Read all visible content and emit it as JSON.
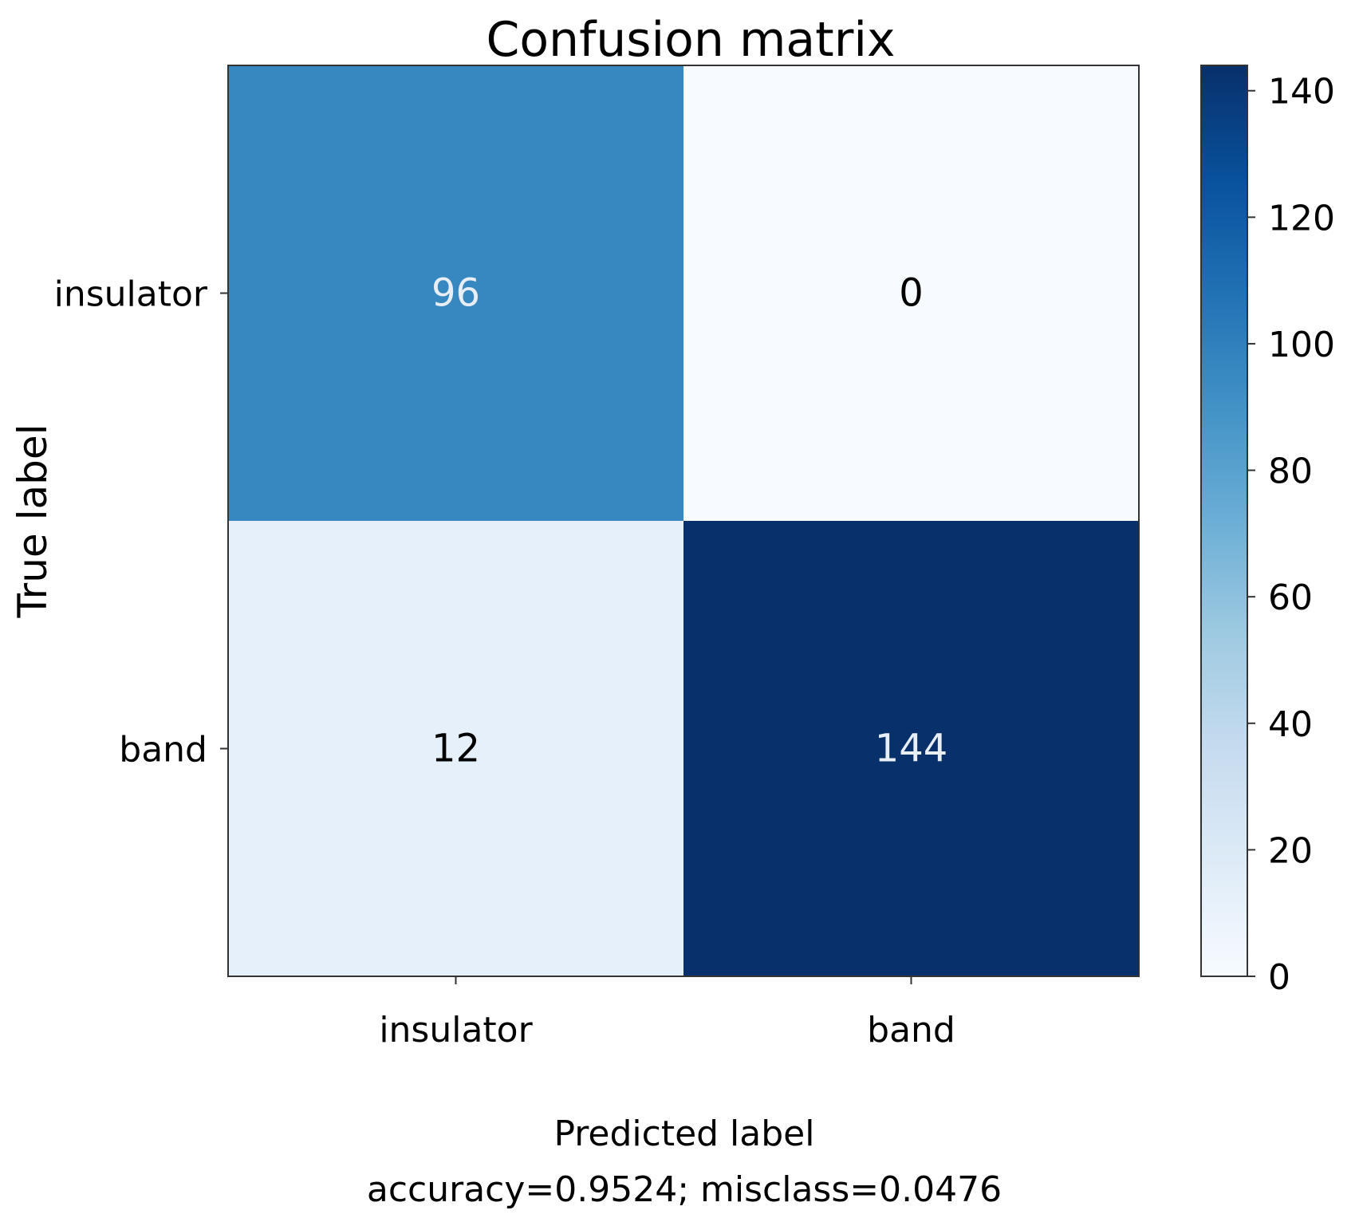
{
  "chart_data": {
    "type": "heatmap",
    "title": "Confusion matrix",
    "xlabel": "Predicted label",
    "ylabel": "True label",
    "footer": "accuracy=0.9524; misclass=0.0476",
    "x_categories": [
      "insulator",
      "band"
    ],
    "y_categories": [
      "insulator",
      "band"
    ],
    "matrix": [
      [
        96,
        0
      ],
      [
        12,
        144
      ]
    ],
    "colormap": "Blues",
    "value_range": [
      0,
      144
    ],
    "colorbar_ticks": [
      0,
      20,
      40,
      60,
      80,
      100,
      120,
      140
    ],
    "colors": {
      "min": "#f7fbff",
      "max": "#08306b",
      "text_dark": "#000000",
      "text_light": "#e8eef5"
    }
  }
}
